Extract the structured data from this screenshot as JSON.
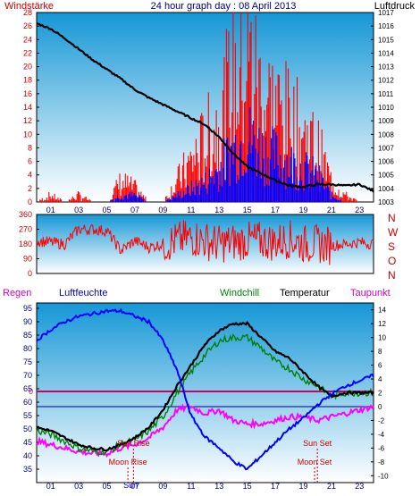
{
  "header": {
    "title": "24 hour graph day : 08 April 2013",
    "left_label": "Windstärke",
    "right_label": "Luftdruck"
  },
  "colors": {
    "panel_top": "#1597d6",
    "panel_bottom": "#ffffff",
    "wind": "#ff0000",
    "gust_band": "#0000ff",
    "pressure": "#000000",
    "temperature": "#000000",
    "windchill": "#008000",
    "humidity": "#0000ff",
    "dewpoint": "#ff00ff",
    "rain_line": "#cc0066",
    "zero_line": "#000080",
    "sun": "#cc0000",
    "moon": "#cc0000"
  },
  "chart_data": [
    {
      "type": "line",
      "name": "wind-pressure",
      "x_ticks": [
        "01",
        "03",
        "05",
        "07",
        "09",
        "11",
        "13",
        "15",
        "17",
        "19",
        "21",
        "23"
      ],
      "ylim_left": [
        0,
        28
      ],
      "yticks_left": [
        "0",
        "2",
        "4",
        "6",
        "8",
        "10",
        "12",
        "14",
        "16",
        "18",
        "20",
        "22",
        "24",
        "26",
        "28"
      ],
      "ylim_right": [
        1003,
        1017
      ],
      "yticks_right": [
        "1003",
        "1004",
        "1005",
        "1006",
        "1007",
        "1008",
        "1009",
        "1010",
        "1011",
        "1012",
        "1013",
        "1014",
        "1015",
        "1016",
        "1017"
      ],
      "series": [
        {
          "key": "pressure",
          "axis": "right",
          "x": [
            0,
            1,
            2,
            3,
            4,
            5,
            6,
            7,
            8,
            9,
            10,
            11,
            12,
            13,
            14,
            15,
            16,
            17,
            18,
            19,
            20,
            21,
            22,
            23,
            24
          ],
          "y": [
            1016.2,
            1015.8,
            1015.1,
            1014.3,
            1013.5,
            1012.8,
            1012.1,
            1011.3,
            1010.7,
            1010.2,
            1009.7,
            1009.2,
            1008.7,
            1007.8,
            1006.6,
            1005.6,
            1005.1,
            1004.6,
            1004.2,
            1004.1,
            1004.3,
            1004.3,
            1004.2,
            1004.3,
            1003.8
          ]
        },
        {
          "key": "wind",
          "axis": "left",
          "x": [
            0,
            1,
            2,
            3,
            4,
            5,
            6,
            7,
            8,
            9,
            10,
            11,
            12,
            13,
            14,
            15,
            16,
            17,
            18,
            19,
            20,
            21,
            22,
            23,
            24
          ],
          "y": [
            0,
            1,
            0,
            1,
            0,
            0,
            3,
            2,
            0,
            0,
            3,
            6,
            9,
            12,
            18,
            22,
            16,
            14,
            12,
            10,
            8,
            3,
            1,
            0,
            0
          ]
        },
        {
          "key": "gust_band",
          "axis": "left",
          "x": [
            0,
            1,
            2,
            3,
            4,
            5,
            6,
            7,
            8,
            9,
            10,
            11,
            12,
            13,
            14,
            15,
            16,
            17,
            18,
            19,
            20,
            21,
            22,
            23,
            24
          ],
          "y": [
            0,
            0,
            0,
            0,
            0,
            0,
            1,
            1,
            0,
            0,
            1,
            2,
            3,
            5,
            8,
            10,
            8,
            7,
            6,
            5,
            4,
            1,
            0,
            0,
            0
          ]
        }
      ]
    },
    {
      "type": "line",
      "name": "wind-direction",
      "ylim": [
        0,
        360
      ],
      "yticks": [
        "0",
        "90",
        "180",
        "270",
        "360"
      ],
      "compass": [
        "N",
        "W",
        "S",
        "O",
        "N"
      ],
      "series": [
        {
          "key": "wind_direction",
          "x": [
            0,
            1,
            2,
            3,
            4,
            5,
            6,
            7,
            8,
            9,
            10,
            11,
            12,
            13,
            14,
            15,
            16,
            17,
            18,
            19,
            20,
            21,
            22,
            23,
            24
          ],
          "y": [
            200,
            190,
            180,
            270,
            270,
            260,
            140,
            200,
            160,
            180,
            200,
            220,
            200,
            180,
            190,
            200,
            200,
            190,
            210,
            180,
            180,
            170,
            180,
            190,
            180
          ]
        }
      ]
    },
    {
      "type": "line",
      "name": "temperature-humidity",
      "legend": [
        "Regen",
        "Luftfeuchte",
        "Windchill",
        "Temperatur",
        "Taupunkt"
      ],
      "ylim_left": [
        30,
        97
      ],
      "yticks_left": [
        "35",
        "40",
        "45",
        "50",
        "55",
        "60",
        "65",
        "70",
        "75",
        "80",
        "85",
        "90",
        "95"
      ],
      "ylim_right": [
        -11,
        15
      ],
      "yticks_right": [
        "-10",
        "-8",
        "-6",
        "-4",
        "-2",
        "0",
        "2",
        "4",
        "6",
        "8",
        "10",
        "12",
        "14"
      ],
      "rain_label": "0",
      "series": [
        {
          "key": "humidity",
          "axis": "left",
          "x": [
            0,
            1,
            2,
            3,
            4,
            5,
            6,
            7,
            8,
            9,
            10,
            11,
            12,
            13,
            14,
            15,
            16,
            17,
            18,
            19,
            20,
            21,
            22,
            23,
            24
          ],
          "y": [
            83,
            87,
            90,
            92,
            93,
            94,
            94,
            92,
            90,
            83,
            72,
            55,
            47,
            43,
            38,
            35,
            40,
            45,
            50,
            54,
            59,
            63,
            66,
            68,
            70
          ]
        },
        {
          "key": "temperature",
          "axis": "right",
          "x": [
            0,
            1,
            2,
            3,
            4,
            5,
            6,
            7,
            8,
            9,
            10,
            11,
            12,
            13,
            14,
            15,
            16,
            17,
            18,
            19,
            20,
            21,
            22,
            23,
            24
          ],
          "y": [
            -3,
            -3.5,
            -4.5,
            -5.5,
            -6,
            -6.2,
            -5.5,
            -4.5,
            -3,
            -0.5,
            3,
            6,
            9,
            11,
            12,
            12,
            10,
            8,
            7,
            5,
            3,
            1.5,
            2,
            2,
            2
          ]
        },
        {
          "key": "windchill",
          "axis": "right",
          "x": [
            0,
            1,
            2,
            3,
            4,
            5,
            6,
            7,
            8,
            9,
            10,
            11,
            12,
            13,
            14,
            15,
            16,
            17,
            18,
            19,
            20,
            21,
            22,
            23,
            24
          ],
          "y": [
            -3.5,
            -4,
            -5,
            -6,
            -6.5,
            -6.5,
            -5.5,
            -4.8,
            -3.5,
            -1.5,
            2,
            5,
            7.5,
            9.5,
            10,
            10,
            8.5,
            6.5,
            5.5,
            4,
            3,
            1.5,
            2,
            2,
            2
          ]
        },
        {
          "key": "dewpoint",
          "axis": "right",
          "x": [
            0,
            1,
            2,
            3,
            4,
            5,
            6,
            7,
            8,
            9,
            10,
            11,
            12,
            13,
            14,
            15,
            16,
            17,
            18,
            19,
            20,
            21,
            22,
            23,
            24
          ],
          "y": [
            -5,
            -5.5,
            -6,
            -6.5,
            -6.8,
            -6.8,
            -6,
            -5.5,
            -4.5,
            -3,
            -0.5,
            0,
            -1,
            -0.5,
            -2,
            -2.5,
            -2.5,
            -2,
            -1.5,
            -1.5,
            -2,
            -1.5,
            -1,
            -0.5,
            0
          ]
        },
        {
          "key": "rain",
          "axis": "left",
          "x": [
            0,
            24
          ],
          "y": [
            64,
            64
          ]
        }
      ],
      "events": [
        {
          "label": "Sun Rise",
          "hour": 6.9,
          "row": 0
        },
        {
          "label": "Sun Set",
          "hour": 20.0,
          "row": 0
        },
        {
          "label": "Moon Rise",
          "hour": 6.5,
          "row": 1
        },
        {
          "label": "Moon Set",
          "hour": 19.8,
          "row": 1
        }
      ],
      "sun_label": "Sun"
    }
  ]
}
